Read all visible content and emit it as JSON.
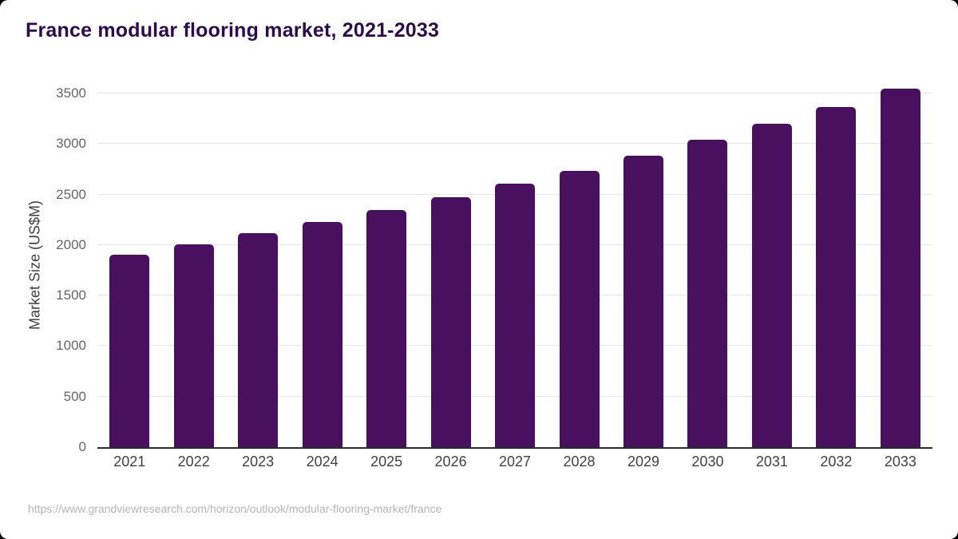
{
  "title": "France modular flooring market, 2021-2033",
  "source_url": "https://www.grandviewresearch.com/horizon/outlook/modular-flooring-market/france",
  "colors": {
    "bar": "#4a1060",
    "title": "#2d0b51",
    "axis_line": "#2b2b2b",
    "gridline": "#e7e7e7",
    "y_tick_text": "#666666",
    "x_tick_text": "#414141",
    "axis_title_text": "#3f3f3f",
    "source_text": "#b5b5b5",
    "background": "#ffffff"
  },
  "chart_data": {
    "type": "bar",
    "title": "France modular flooring market, 2021-2033",
    "categories": [
      "2021",
      "2022",
      "2023",
      "2024",
      "2025",
      "2026",
      "2027",
      "2028",
      "2029",
      "2030",
      "2031",
      "2032",
      "2033"
    ],
    "values": [
      1905,
      2010,
      2115,
      2230,
      2345,
      2470,
      2605,
      2735,
      2880,
      3040,
      3200,
      3365,
      3545
    ],
    "xlabel": "",
    "ylabel": "Market Size (US$M)",
    "ylim": [
      0,
      3500
    ],
    "yticks": [
      0,
      500,
      1000,
      1500,
      2000,
      2500,
      3000,
      3500
    ],
    "grid": true,
    "legend": false
  }
}
